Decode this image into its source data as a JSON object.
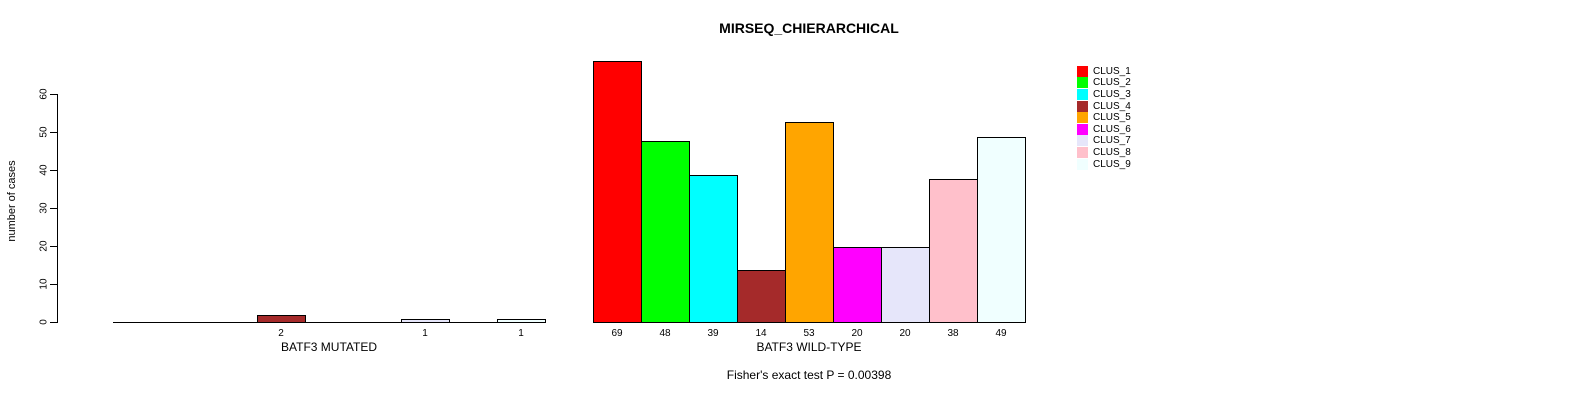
{
  "chart_data": {
    "type": "bar",
    "title": "MIRSEQ_CHIERARCHICAL",
    "ylabel": "number of cases",
    "xlabel": "",
    "annotation": "Fisher's exact test P = 0.00398",
    "yticks": [
      0,
      10,
      20,
      30,
      40,
      50,
      60
    ],
    "ylim": [
      0,
      69
    ],
    "grid": false,
    "legend_position": "right",
    "clusters": [
      {
        "name": "CLUS_1",
        "color": "#FF0000"
      },
      {
        "name": "CLUS_2",
        "color": "#00FF00"
      },
      {
        "name": "CLUS_3",
        "color": "#00FFFF"
      },
      {
        "name": "CLUS_4",
        "color": "#A52A2A"
      },
      {
        "name": "CLUS_5",
        "color": "#FFA500"
      },
      {
        "name": "CLUS_6",
        "color": "#FF00FF"
      },
      {
        "name": "CLUS_7",
        "color": "#E6E6FA"
      },
      {
        "name": "CLUS_8",
        "color": "#FFC0CB"
      },
      {
        "name": "CLUS_9",
        "color": "#F0FFFF"
      }
    ],
    "groups": [
      {
        "label": "BATF3 MUTATED",
        "values": [
          0,
          0,
          0,
          2,
          0,
          0,
          1,
          0,
          1
        ],
        "bar_labels": [
          "",
          "",
          "",
          "2",
          "",
          "",
          "1",
          "",
          "1"
        ]
      },
      {
        "label": "BATF3 WILD-TYPE",
        "values": [
          69,
          48,
          39,
          14,
          53,
          20,
          20,
          38,
          49
        ],
        "bar_labels": [
          "69",
          "48",
          "39",
          "14",
          "53",
          "20",
          "20",
          "38",
          "49"
        ]
      }
    ]
  }
}
